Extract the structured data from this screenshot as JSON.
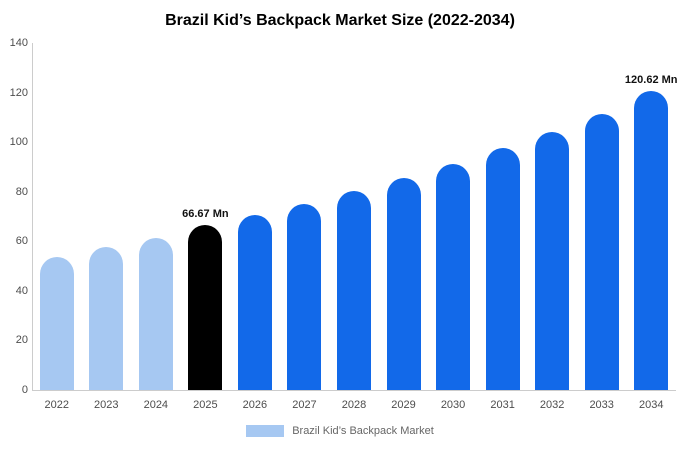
{
  "chart_data": {
    "type": "bar",
    "title": "Brazil Kid’s Backpack Market Size (2022-2034)",
    "unit": "Mn",
    "categories": [
      "2022",
      "2023",
      "2024",
      "2025",
      "2026",
      "2027",
      "2028",
      "2029",
      "2030",
      "2031",
      "2032",
      "2033",
      "2034"
    ],
    "values": [
      53.5,
      57.5,
      61.5,
      66.67,
      70.5,
      75.0,
      80.3,
      85.6,
      91.3,
      97.5,
      104.2,
      111.5,
      120.62
    ],
    "value_labels": [
      "",
      "",
      "",
      "66.67 Mn",
      "",
      "",
      "",
      "",
      "",
      "",
      "",
      "",
      "120.62 Mn"
    ],
    "bar_colors": [
      "#a6c8f2",
      "#a6c8f2",
      "#a6c8f2",
      "#000000",
      "#1269e9",
      "#1269e9",
      "#1269e9",
      "#1269e9",
      "#1269e9",
      "#1269e9",
      "#1269e9",
      "#1269e9",
      "#1269e9"
    ],
    "ylim": [
      0,
      140
    ],
    "yticks": [
      0,
      20,
      40,
      60,
      80,
      100,
      120,
      140
    ],
    "grid": "off",
    "legend": {
      "position": "bottom",
      "label": "Brazil Kid’s Backpack Market",
      "swatch_color": "#a6c8f2"
    },
    "colors": {
      "historical": "#a6c8f2",
      "base_year": "#000000",
      "forecast": "#1269e9",
      "axis": "#cccccc"
    }
  }
}
